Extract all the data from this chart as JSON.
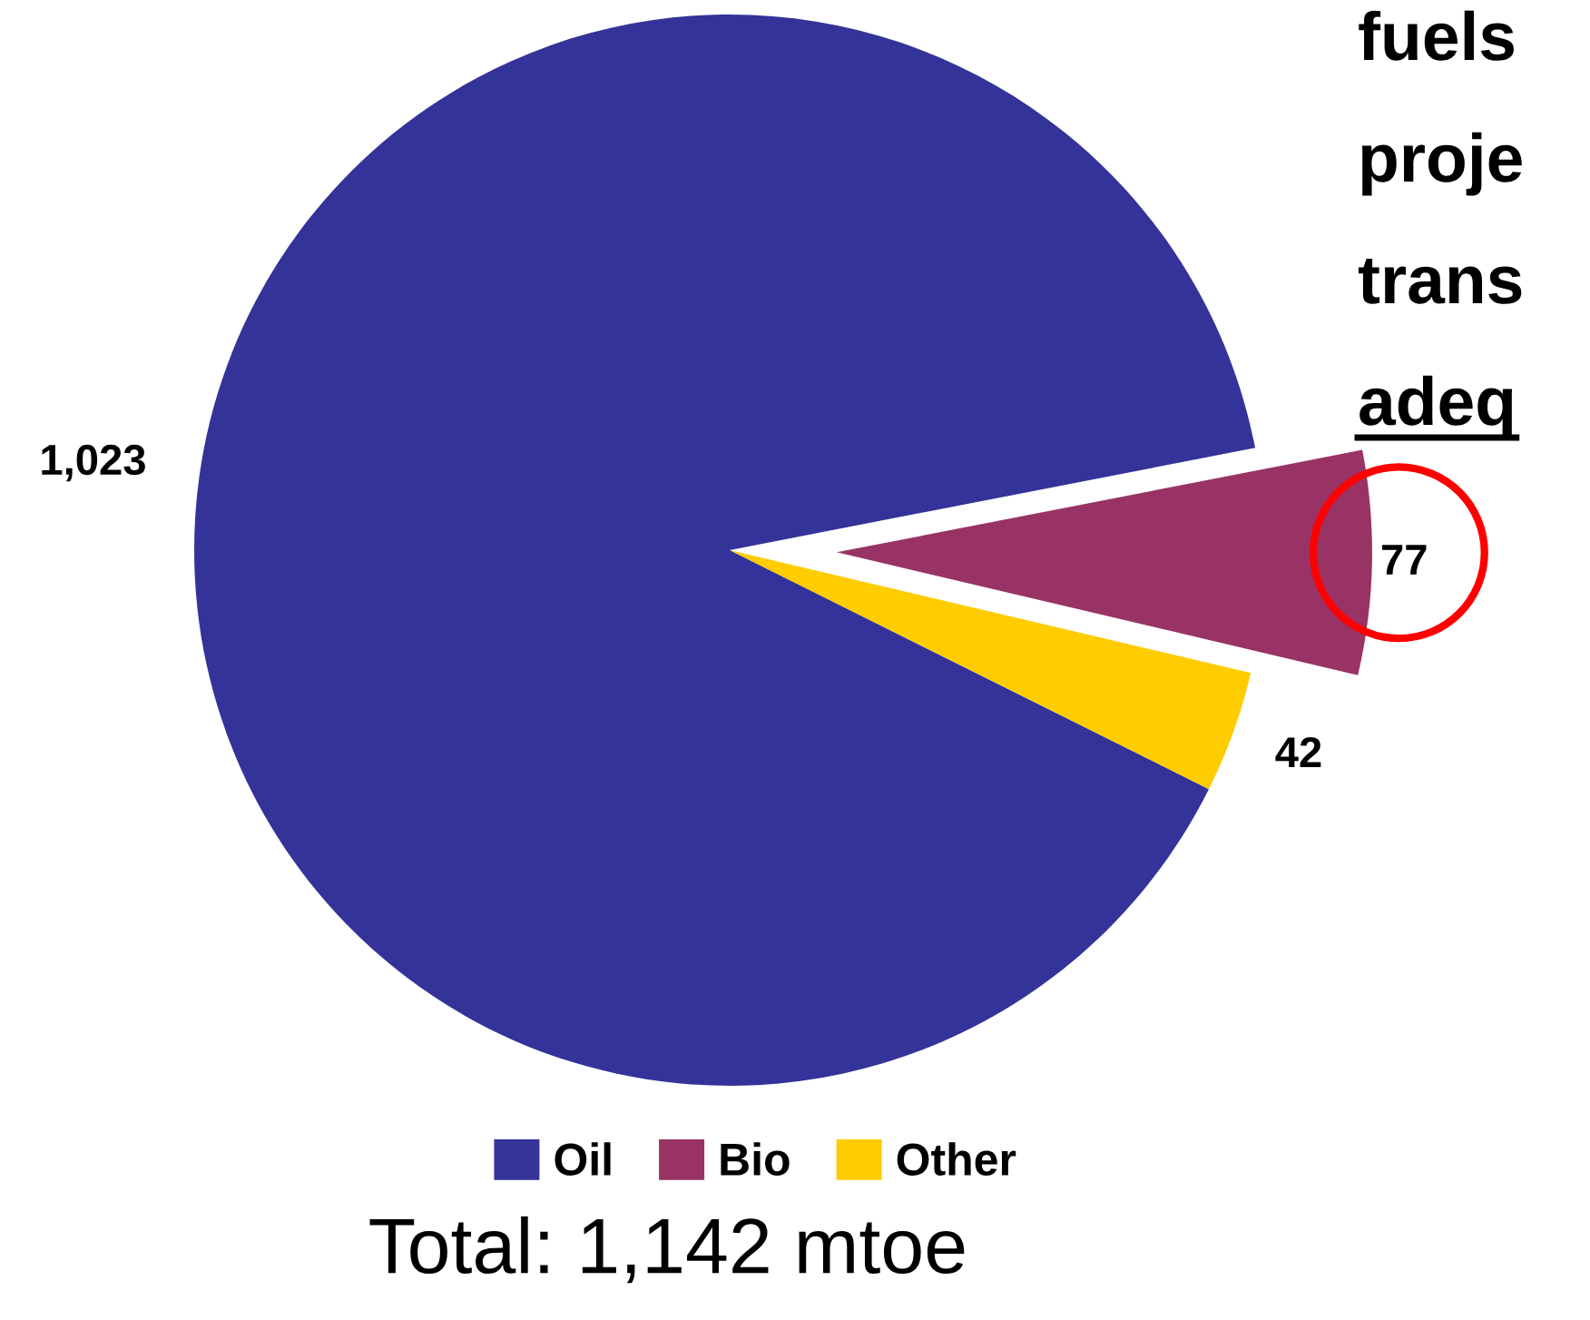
{
  "chart_data": {
    "type": "pie",
    "categories": [
      "Oil",
      "Bio",
      "Other"
    ],
    "values": [
      1023,
      77,
      42
    ],
    "colors": [
      "#333399",
      "#993366",
      "#ffcc00"
    ],
    "value_labels": [
      "1,023",
      "77",
      "42"
    ],
    "legend": "bottom",
    "annotations": [
      "Total: 1,142 mtoe",
      "fuels",
      "proje",
      "trans",
      "adeq"
    ]
  }
}
